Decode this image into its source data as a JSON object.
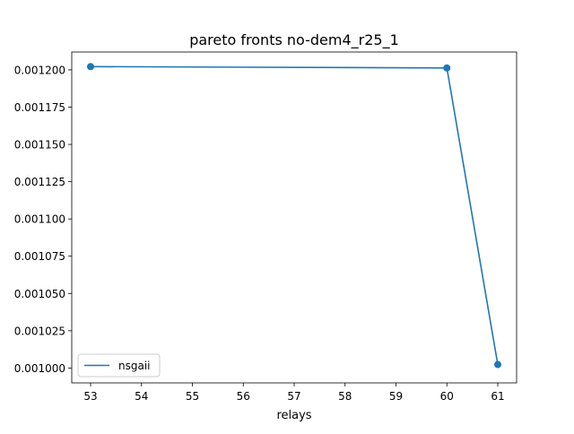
{
  "chart_data": {
    "type": "line",
    "title": "pareto fronts no-dem4_r25_1",
    "xlabel": "relays",
    "ylabel": "",
    "xlim": [
      52.63,
      61.37
    ],
    "ylim": [
      0.00099,
      0.001212
    ],
    "x_ticks": [
      53,
      54,
      55,
      56,
      57,
      58,
      59,
      60,
      61
    ],
    "x_tick_labels": [
      "53",
      "54",
      "55",
      "56",
      "57",
      "58",
      "59",
      "60",
      "61"
    ],
    "y_ticks": [
      0.001,
      0.001025,
      0.00105,
      0.001075,
      0.0011,
      0.001125,
      0.00115,
      0.001175,
      0.0012
    ],
    "y_tick_labels": [
      "0.001000",
      "0.001025",
      "0.001050",
      "0.001075",
      "0.001100",
      "0.001125",
      "0.001150",
      "0.001175",
      "0.001200"
    ],
    "grid": false,
    "legend_position": "lower left",
    "series": [
      {
        "name": "nsgaii",
        "color": "#1f77b4",
        "marker": "circle",
        "x": [
          53,
          60,
          61
        ],
        "y": [
          0.0012022,
          0.0012013,
          0.0010023
        ]
      }
    ]
  }
}
